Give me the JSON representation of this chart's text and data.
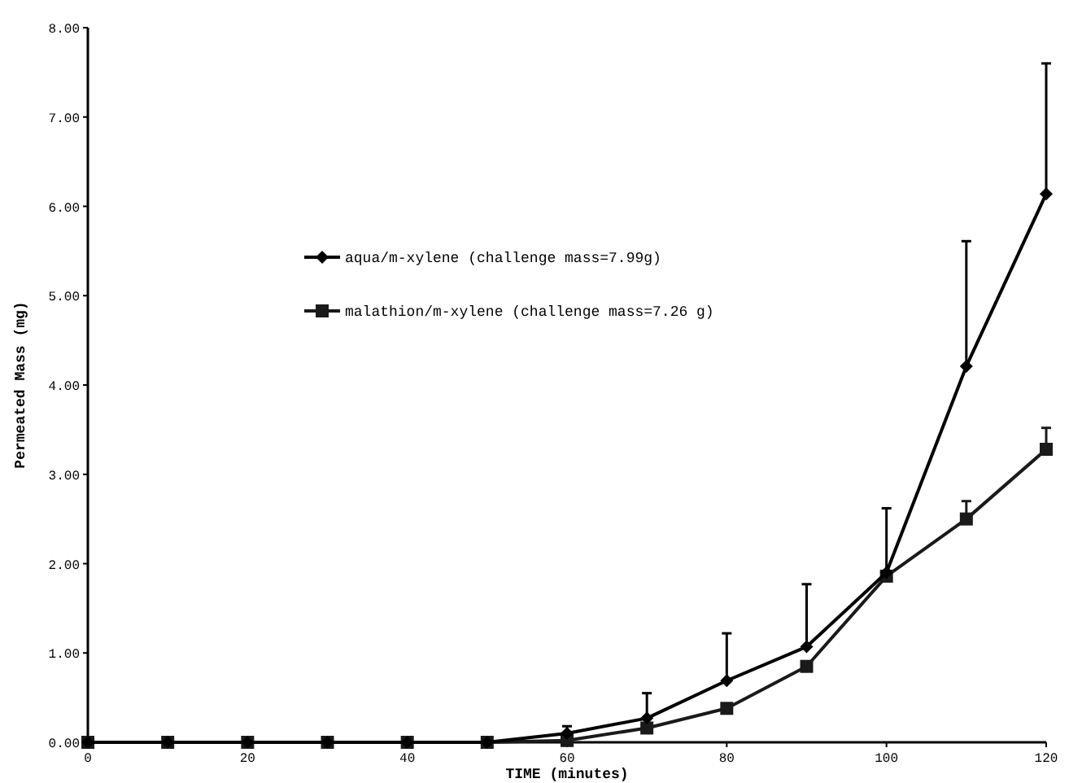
{
  "chart_data": {
    "type": "line",
    "xlabel": "TIME (minutes)",
    "ylabel": "Permeated Mass (mg)",
    "x": [
      0,
      10,
      20,
      30,
      40,
      50,
      60,
      70,
      80,
      90,
      100,
      110,
      120
    ],
    "series": [
      {
        "name": "aqua/m-xylene (challenge mass=7.99g)",
        "color": "#000000",
        "marker": "diamond",
        "values": [
          0,
          0,
          0,
          0,
          0,
          0,
          0.1,
          0.27,
          0.69,
          1.07,
          1.9,
          4.21,
          6.14
        ],
        "errors": [
          null,
          null,
          null,
          null,
          null,
          null,
          [
            0.1,
            0.18
          ],
          [
            0.27,
            0.55
          ],
          [
            0.69,
            1.22
          ],
          [
            1.07,
            1.77
          ],
          [
            1.9,
            2.62
          ],
          [
            4.21,
            5.61
          ],
          [
            6.14,
            7.6
          ]
        ]
      },
      {
        "name": "malathion/m-xylene (challenge mass=7.26 g)",
        "color": "#1a1a1a",
        "marker": "square",
        "values": [
          0,
          0,
          0,
          0,
          0,
          0,
          0.02,
          0.16,
          0.38,
          0.85,
          1.86,
          2.5,
          3.28
        ],
        "errors": [
          null,
          null,
          null,
          null,
          null,
          null,
          null,
          null,
          null,
          null,
          null,
          [
            2.5,
            2.7
          ],
          [
            3.28,
            3.52
          ]
        ]
      }
    ],
    "xlim": [
      0,
      120
    ],
    "xticks": [
      0,
      20,
      40,
      60,
      80,
      100,
      120
    ],
    "ylim": [
      0,
      8
    ],
    "yticks": [
      {
        "value": 0,
        "label": "0.00"
      },
      {
        "value": 1,
        "label": "1.00"
      },
      {
        "value": 2,
        "label": "2.00"
      },
      {
        "value": 3,
        "label": "3.00"
      },
      {
        "value": 4,
        "label": "4.00"
      },
      {
        "value": 5,
        "label": "5.00"
      },
      {
        "value": 6,
        "label": "6.00"
      },
      {
        "value": 7,
        "label": "7.00"
      },
      {
        "value": 8,
        "label": "8.00"
      }
    ],
    "legend": "top left",
    "grid": false,
    "line_style": "solid"
  }
}
